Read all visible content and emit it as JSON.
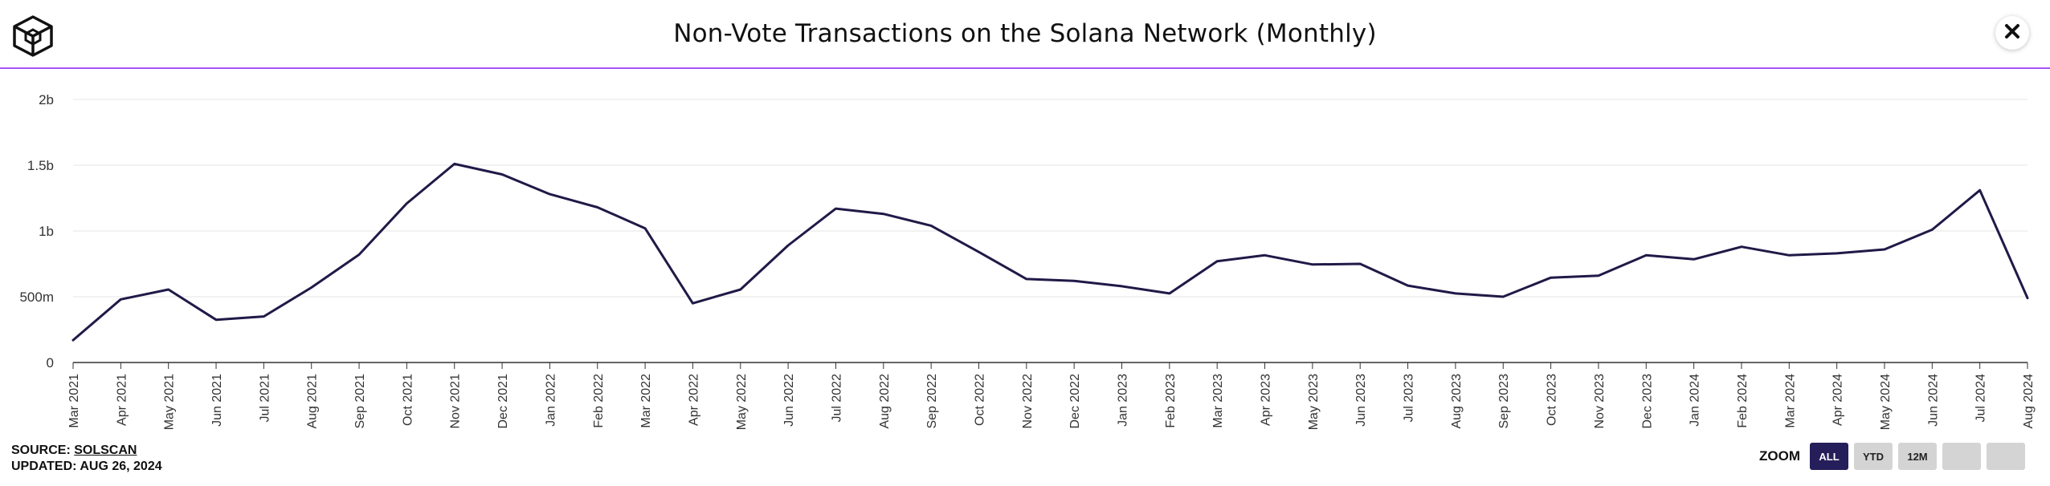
{
  "header": {
    "title": "Non-Vote Transactions on the Solana Network (Monthly)",
    "logo_icon": "block-cube-logo",
    "close_icon": "close-icon"
  },
  "footer": {
    "source_prefix": "SOURCE: ",
    "source_link": "SOLSCAN",
    "updated": "UPDATED: AUG 26, 2024"
  },
  "zoom": {
    "label": "ZOOM",
    "buttons": [
      "ALL",
      "YTD",
      "12M",
      "",
      ""
    ],
    "active": "ALL"
  },
  "colors": {
    "accent": "#a855f7",
    "line": "#1f1a47",
    "zoom_active": "#241f5a"
  },
  "chart_data": {
    "type": "line",
    "title": "Non-Vote Transactions on the Solana Network (Monthly)",
    "xlabel": "",
    "ylabel": "",
    "ylim": [
      0,
      2000000000
    ],
    "y_ticks": [
      0,
      500000000,
      1000000000,
      1500000000,
      2000000000
    ],
    "y_tick_labels": [
      "0",
      "500m",
      "1b",
      "1.5b",
      "2b"
    ],
    "grid": true,
    "legend": "none",
    "categories": [
      "Mar 2021",
      "Apr 2021",
      "May 2021",
      "Jun 2021",
      "Jul 2021",
      "Aug 2021",
      "Sep 2021",
      "Oct 2021",
      "Nov 2021",
      "Dec 2021",
      "Jan 2022",
      "Feb 2022",
      "Mar 2022",
      "Apr 2022",
      "May 2022",
      "Jun 2022",
      "Jul 2022",
      "Aug 2022",
      "Sep 2022",
      "Oct 2022",
      "Nov 2022",
      "Dec 2022",
      "Jan 2023",
      "Feb 2023",
      "Mar 2023",
      "Apr 2023",
      "May 2023",
      "Jun 2023",
      "Jul 2023",
      "Aug 2023",
      "Sep 2023",
      "Oct 2023",
      "Nov 2023",
      "Dec 2023",
      "Jan 2024",
      "Feb 2024",
      "Mar 2024",
      "Apr 2024",
      "May 2024",
      "Jun 2024",
      "Jul 2024",
      "Aug 2024"
    ],
    "series": [
      {
        "values": [
          170000000,
          480000000,
          555000000,
          325000000,
          350000000,
          570000000,
          820000000,
          1210000000,
          1510000000,
          1430000000,
          1280000000,
          1180000000,
          1020000000,
          450000000,
          555000000,
          890000000,
          1170000000,
          1130000000,
          1040000000,
          840000000,
          635000000,
          620000000,
          580000000,
          525000000,
          770000000,
          815000000,
          745000000,
          750000000,
          585000000,
          525000000,
          500000000,
          645000000,
          660000000,
          815000000,
          785000000,
          880000000,
          815000000,
          830000000,
          860000000,
          1010000000,
          1310000000,
          490000000
        ]
      }
    ]
  }
}
